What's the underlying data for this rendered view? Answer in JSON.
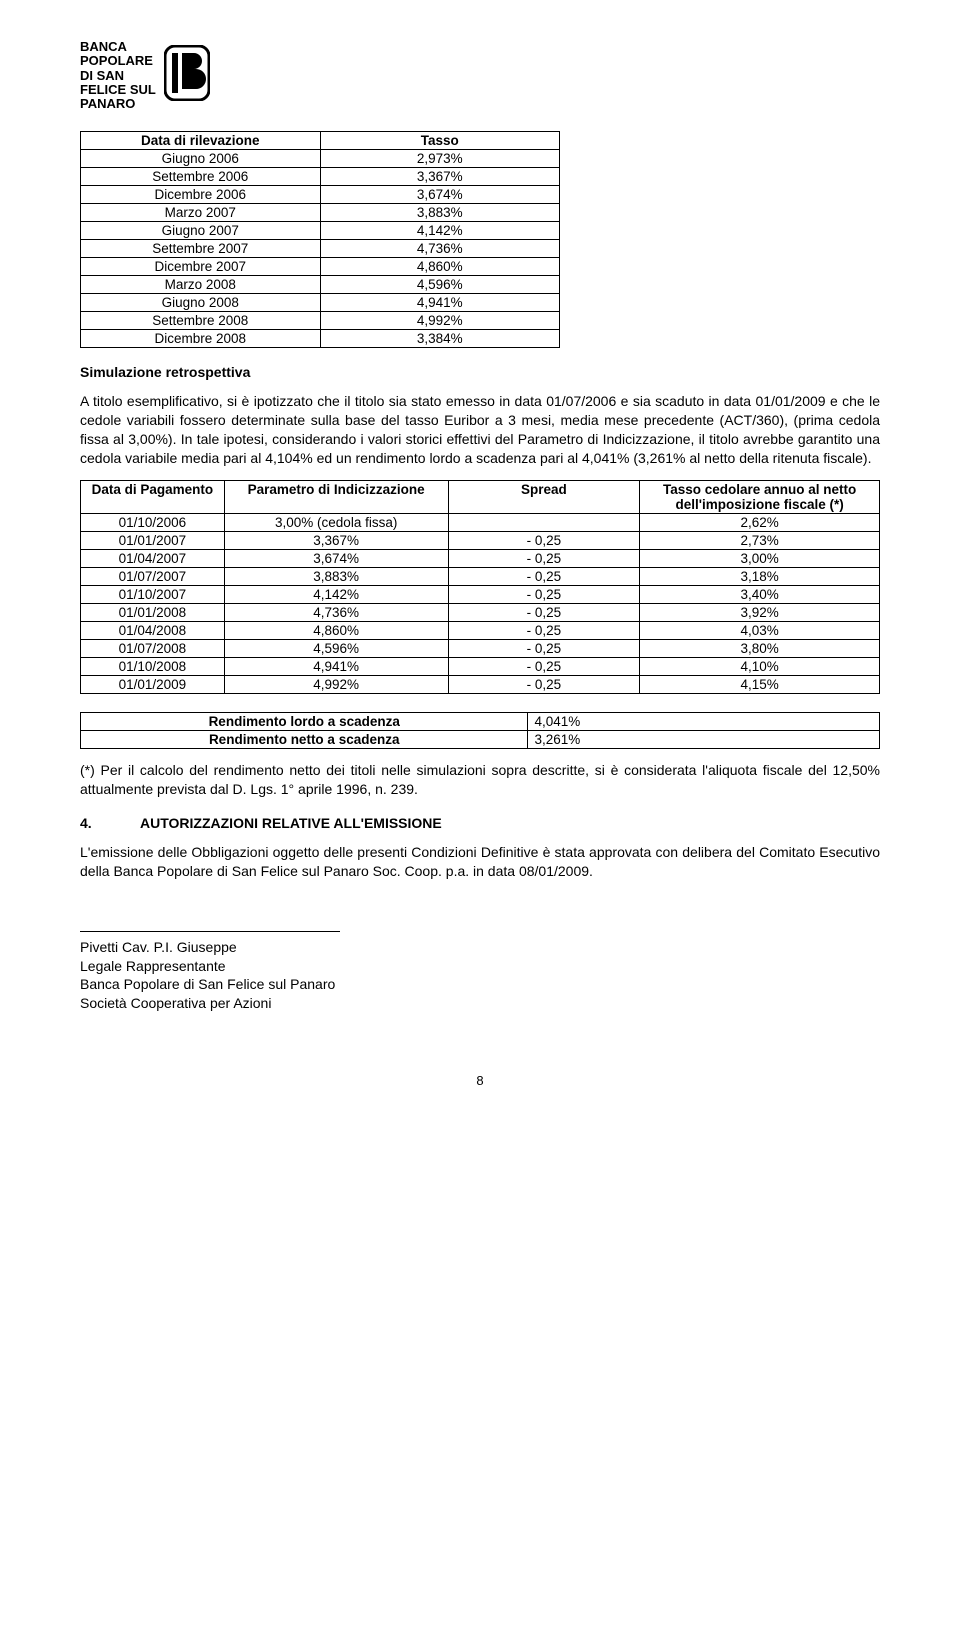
{
  "logo": {
    "line1": "BANCA",
    "line2": "POPOLARE",
    "line3": "DI SAN",
    "line4": "FELICE SUL",
    "line5": "PANARO"
  },
  "table1": {
    "columns": [
      "Data di rilevazione",
      "Tasso"
    ],
    "col_align": [
      "center",
      "center"
    ],
    "col_widths": [
      "50%",
      "50%"
    ],
    "rows": [
      [
        "Giugno 2006",
        "2,973%"
      ],
      [
        "Settembre 2006",
        "3,367%"
      ],
      [
        "Dicembre 2006",
        "3,674%"
      ],
      [
        "Marzo 2007",
        "3,883%"
      ],
      [
        "Giugno 2007",
        "4,142%"
      ],
      [
        "Settembre 2007",
        "4,736%"
      ],
      [
        "Dicembre 2007",
        "4,860%"
      ],
      [
        "Marzo 2008",
        "4,596%"
      ],
      [
        "Giugno 2008",
        "4,941%"
      ],
      [
        "Settembre 2008",
        "4,992%"
      ],
      [
        "Dicembre 2008",
        "3,384%"
      ]
    ]
  },
  "sim_title": "Simulazione retrospettiva",
  "sim_para": "A titolo esemplificativo, si è ipotizzato che il titolo sia stato emesso in data 01/07/2006 e sia scaduto in data 01/01/2009 e che le cedole variabili fossero determinate sulla base del tasso Euribor a 3 mesi, media mese precedente (ACT/360), (prima cedola fissa al 3,00%). In tale ipotesi, considerando i valori storici effettivi del Parametro di Indicizzazione, il titolo avrebbe garantito una cedola variabile media pari al 4,104% ed un rendimento lordo a scadenza pari al 4,041% (3,261% al netto della ritenuta fiscale).",
  "table2": {
    "columns": [
      "Data di Pagamento",
      "Parametro di Indicizzazione",
      "Spread",
      "Tasso cedolare annuo al netto dell'imposizione fiscale (*)"
    ],
    "col_align": [
      "center",
      "center",
      "center",
      "center"
    ],
    "col_widths": [
      "18%",
      "28%",
      "24%",
      "30%"
    ],
    "rows": [
      [
        "01/10/2006",
        "3,00% (cedola fissa)",
        "",
        "2,62%"
      ],
      [
        "01/01/2007",
        "3,367%",
        "- 0,25",
        "2,73%"
      ],
      [
        "01/04/2007",
        "3,674%",
        "- 0,25",
        "3,00%"
      ],
      [
        "01/07/2007",
        "3,883%",
        "- 0,25",
        "3,18%"
      ],
      [
        "01/10/2007",
        "4,142%",
        "- 0,25",
        "3,40%"
      ],
      [
        "01/01/2008",
        "4,736%",
        "- 0,25",
        "3,92%"
      ],
      [
        "01/04/2008",
        "4,860%",
        "- 0,25",
        "4,03%"
      ],
      [
        "01/07/2008",
        "4,596%",
        "- 0,25",
        "3,80%"
      ],
      [
        "01/10/2008",
        "4,941%",
        "- 0,25",
        "4,10%"
      ],
      [
        "01/01/2009",
        "4,992%",
        "- 0,25",
        "4,15%"
      ]
    ]
  },
  "table3": {
    "col_widths": [
      "56%",
      "44%"
    ],
    "rows": [
      [
        "Rendimento lordo a scadenza",
        "4,041%"
      ],
      [
        "Rendimento netto a scadenza",
        "3,261%"
      ]
    ]
  },
  "footnote": "(*) Per il calcolo del rendimento netto dei titoli nelle simulazioni sopra descritte, si è considerata l'aliquota fiscale del 12,50% attualmente prevista dal D. Lgs. 1° aprile 1996, n. 239.",
  "section4": {
    "num": "4.",
    "title": "AUTORIZZAZIONI RELATIVE ALL'EMISSIONE"
  },
  "auth_para": "L'emissione delle Obbligazioni oggetto delle presenti Condizioni Definitive è stata approvata con delibera del Comitato Esecutivo della Banca Popolare di San Felice sul Panaro Soc. Coop. p.a. in data 08/01/2009.",
  "signature": {
    "name": "Pivetti Cav. P.I. Giuseppe",
    "role": "Legale Rappresentante",
    "org1": "Banca Popolare di San Felice sul Panaro",
    "org2": "Società Cooperativa per Azioni"
  },
  "page_number": "8",
  "colors": {
    "text": "#000000",
    "background": "#ffffff",
    "border": "#000000"
  }
}
